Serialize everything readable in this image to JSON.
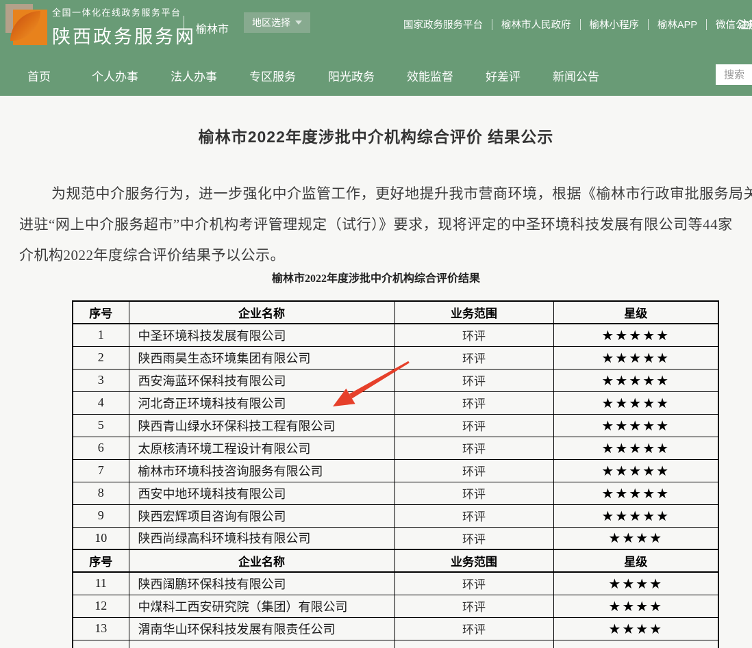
{
  "header": {
    "platform_line": "全国一体化在线政务服务平台",
    "site_name": "陕西政务服务网",
    "city": "榆林市",
    "region_selector": "地区选择",
    "links": [
      "国家政务服务平台",
      "榆林市人民政府",
      "榆林小程序",
      "榆林APP",
      "微信公众号"
    ],
    "register": "注册"
  },
  "nav": {
    "items": [
      "首页",
      "个人办事",
      "法人办事",
      "专区服务",
      "阳光政务",
      "效能监督",
      "好差评",
      "新闻公告"
    ],
    "search_placeholder": "搜索"
  },
  "article": {
    "title": "榆林市2022年度涉批中介机构综合评价 结果公示",
    "paragraph_lines": [
      "为规范中介服务行为，进一步强化中介监管工作，更好地提升我市营商环境，根据《榆林市行政审批服务局关",
      "进驻“网上中介服务超市”中介机构考评管理规定（试行）》要求，现将评定的中圣环境科技发展有限公司等44家",
      "介机构2022年度综合评价结果予以公示。"
    ],
    "table_caption": "榆林市2022年度涉批中介机构综合评价结果"
  },
  "table": {
    "sections": [
      {
        "headers": [
          "序号",
          "企业名称",
          "业务范围",
          "星级"
        ],
        "rows": [
          {
            "no": "1",
            "company": "中圣环境科技发展有限公司",
            "scope": "环评",
            "stars": "★★★★★"
          },
          {
            "no": "2",
            "company": "陕西雨昊生态环境集团有限公司",
            "scope": "环评",
            "stars": "★★★★★"
          },
          {
            "no": "3",
            "company": "西安海蓝环保科技有限公司",
            "scope": "环评",
            "stars": "★★★★★"
          },
          {
            "no": "4",
            "company": "河北奇正环境科技有限公司",
            "scope": "环评",
            "stars": "★★★★★"
          },
          {
            "no": "5",
            "company": "陕西青山绿水环保科技工程有限公司",
            "scope": "环评",
            "stars": "★★★★★"
          },
          {
            "no": "6",
            "company": "太原核清环境工程设计有限公司",
            "scope": "环评",
            "stars": "★★★★★"
          },
          {
            "no": "7",
            "company": "榆林市环境科技咨询服务有限公司",
            "scope": "环评",
            "stars": "★★★★★"
          },
          {
            "no": "8",
            "company": "西安中地环境科技有限公司",
            "scope": "环评",
            "stars": "★★★★★"
          },
          {
            "no": "9",
            "company": "陕西宏辉项目咨询有限公司",
            "scope": "环评",
            "stars": "★★★★★"
          },
          {
            "no": "10",
            "company": "陕西尚绿高科环境科技有限公司",
            "scope": "环评",
            "stars": "★★★★"
          }
        ]
      },
      {
        "headers": [
          "序号",
          "企业名称",
          "业务范围",
          "星级"
        ],
        "rows": [
          {
            "no": "11",
            "company": "陕西阔鹏环保科技有限公司",
            "scope": "环评",
            "stars": "★★★★"
          },
          {
            "no": "12",
            "company": "中煤科工西安研究院（集团）有限公司",
            "scope": "环评",
            "stars": "★★★★"
          },
          {
            "no": "13",
            "company": "渭南华山环保科技发展有限责任公司",
            "scope": "环评",
            "stars": "★★★★"
          }
        ]
      }
    ]
  },
  "colors": {
    "header_green": "#699b76",
    "region_button_green": "#87aa8f",
    "logo_tan": "#b4a18a",
    "logo_orange": "#e8821c",
    "arrow_red": "#e6402a",
    "page_background": "#f7f7f5"
  }
}
